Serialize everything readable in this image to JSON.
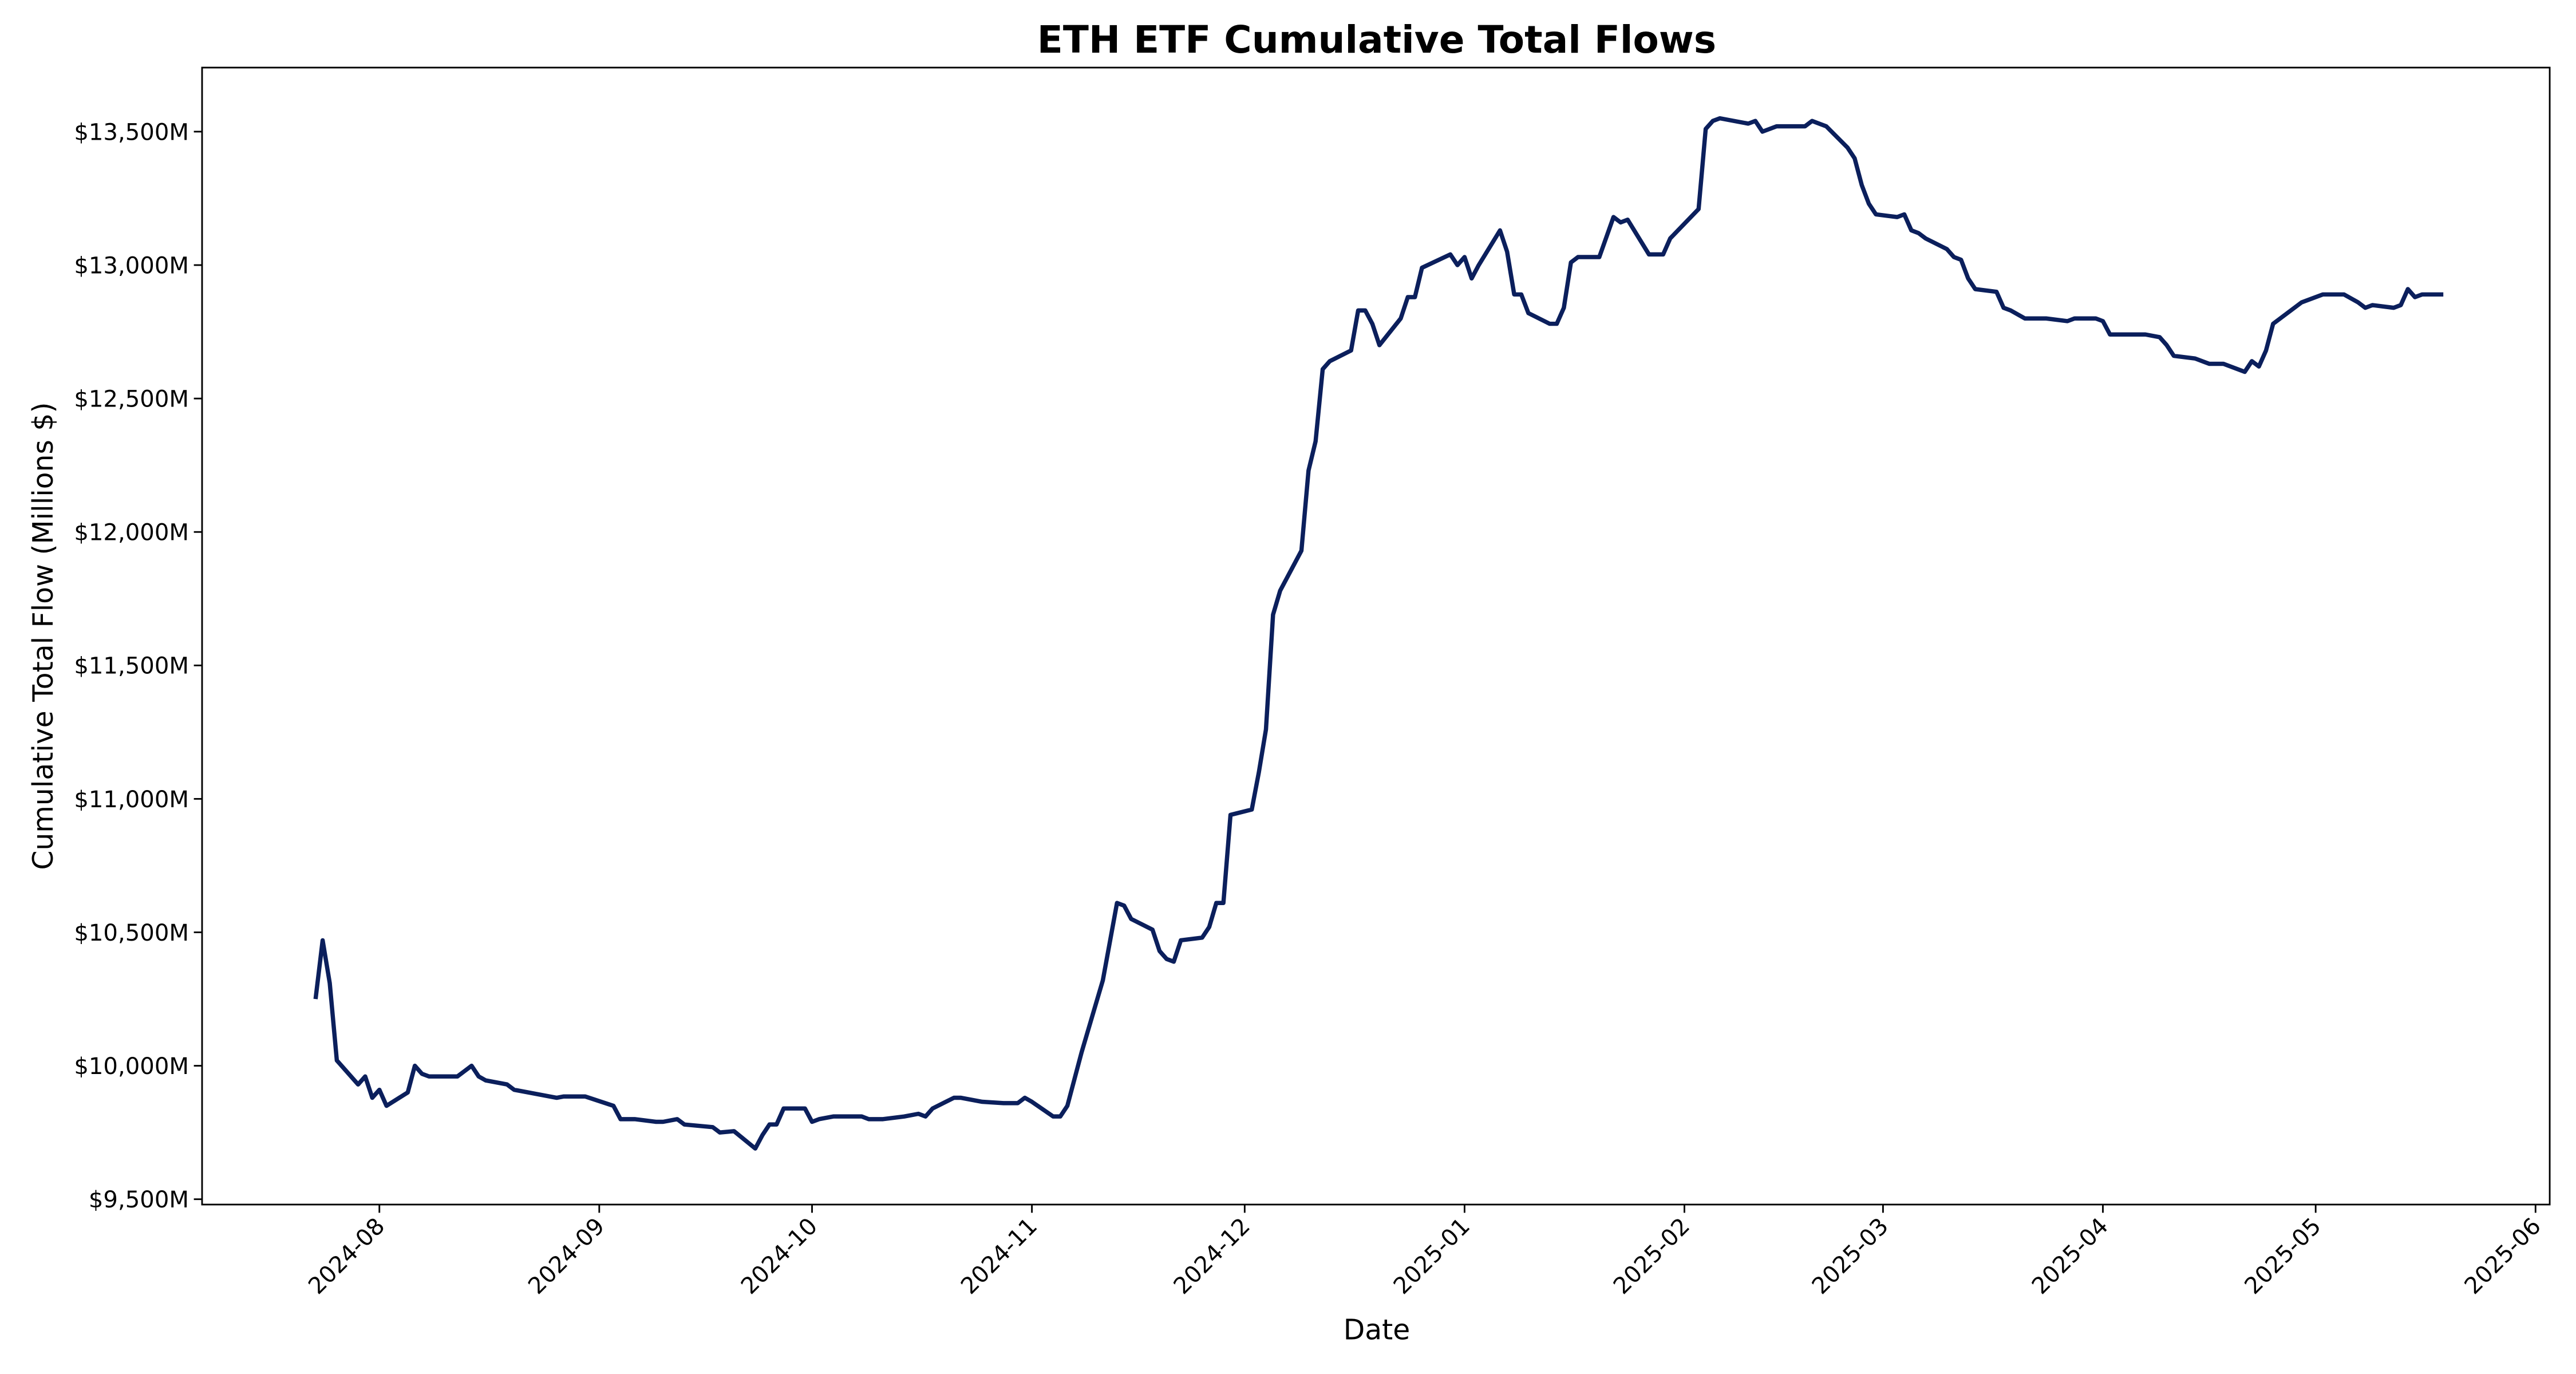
{
  "chart_data": {
    "type": "line",
    "title": "ETH ETF Cumulative Total Flows",
    "x_label": "Date",
    "y_label": "Cumulative Total Flow (Millions $)",
    "color": "#0b1f5c",
    "xlim": [
      "2024-07-07",
      "2025-06-03"
    ],
    "xticks": [
      "2024-08",
      "2024-09",
      "2024-10",
      "2024-11",
      "2024-12",
      "2025-01",
      "2025-02",
      "2025-03",
      "2025-04",
      "2025-05",
      "2025-06"
    ],
    "ylim": [
      9480,
      13740
    ],
    "yticks": [
      {
        "value": 9500,
        "label": "$9,500M"
      },
      {
        "value": 10000,
        "label": "$10,000M"
      },
      {
        "value": 10500,
        "label": "$10,500M"
      },
      {
        "value": 11000,
        "label": "$11,000M"
      },
      {
        "value": 11500,
        "label": "$11,500M"
      },
      {
        "value": 12000,
        "label": "$12,000M"
      },
      {
        "value": 12500,
        "label": "$12,500M"
      },
      {
        "value": 13000,
        "label": "$13,000M"
      },
      {
        "value": 13500,
        "label": "$13,500M"
      }
    ],
    "grid": false,
    "x": [
      "2024-07-23",
      "2024-07-24",
      "2024-07-25",
      "2024-07-26",
      "2024-07-29",
      "2024-07-30",
      "2024-07-31",
      "2024-08-01",
      "2024-08-02",
      "2024-08-05",
      "2024-08-06",
      "2024-08-07",
      "2024-08-08",
      "2024-08-12",
      "2024-08-13",
      "2024-08-14",
      "2024-08-15",
      "2024-08-16",
      "2024-08-19",
      "2024-08-20",
      "2024-08-22",
      "2024-08-26",
      "2024-08-27",
      "2024-08-30",
      "2024-09-03",
      "2024-09-04",
      "2024-09-06",
      "2024-09-09",
      "2024-09-10",
      "2024-09-12",
      "2024-09-13",
      "2024-09-17",
      "2024-09-18",
      "2024-09-20",
      "2024-09-23",
      "2024-09-24",
      "2024-09-25",
      "2024-09-26",
      "2024-09-27",
      "2024-09-30",
      "2024-10-01",
      "2024-10-02",
      "2024-10-04",
      "2024-10-08",
      "2024-10-09",
      "2024-10-11",
      "2024-10-14",
      "2024-10-16",
      "2024-10-17",
      "2024-10-18",
      "2024-10-21",
      "2024-10-22",
      "2024-10-25",
      "2024-10-28",
      "2024-10-30",
      "2024-10-31",
      "2024-11-01",
      "2024-11-04",
      "2024-11-05",
      "2024-11-06",
      "2024-11-07",
      "2024-11-08",
      "2024-11-11",
      "2024-11-13",
      "2024-11-14",
      "2024-11-15",
      "2024-11-18",
      "2024-11-19",
      "2024-11-20",
      "2024-11-21",
      "2024-11-22",
      "2024-11-25",
      "2024-11-26",
      "2024-11-27",
      "2024-11-28",
      "2024-11-29",
      "2024-12-02",
      "2024-12-03",
      "2024-12-04",
      "2024-12-05",
      "2024-12-06",
      "2024-12-09",
      "2024-12-10",
      "2024-12-11",
      "2024-12-12",
      "2024-12-13",
      "2024-12-16",
      "2024-12-17",
      "2024-12-18",
      "2024-12-19",
      "2024-12-20",
      "2024-12-23",
      "2024-12-24",
      "2024-12-25",
      "2024-12-26",
      "2024-12-30",
      "2024-12-31",
      "2025-01-01",
      "2025-01-02",
      "2025-01-03",
      "2025-01-06",
      "2025-01-07",
      "2025-01-08",
      "2025-01-09",
      "2025-01-10",
      "2025-01-13",
      "2025-01-14",
      "2025-01-15",
      "2025-01-16",
      "2025-01-17",
      "2025-01-20",
      "2025-01-22",
      "2025-01-23",
      "2025-01-24",
      "2025-01-27",
      "2025-01-29",
      "2025-01-30",
      "2025-02-03",
      "2025-02-04",
      "2025-02-05",
      "2025-02-06",
      "2025-02-10",
      "2025-02-11",
      "2025-02-12",
      "2025-02-14",
      "2025-02-18",
      "2025-02-19",
      "2025-02-21",
      "2025-02-24",
      "2025-02-25",
      "2025-02-26",
      "2025-02-27",
      "2025-02-28",
      "2025-03-03",
      "2025-03-04",
      "2025-03-05",
      "2025-03-06",
      "2025-03-07",
      "2025-03-10",
      "2025-03-11",
      "2025-03-12",
      "2025-03-13",
      "2025-03-14",
      "2025-03-17",
      "2025-03-18",
      "2025-03-19",
      "2025-03-21",
      "2025-03-24",
      "2025-03-27",
      "2025-03-28",
      "2025-03-31",
      "2025-04-01",
      "2025-04-02",
      "2025-04-04",
      "2025-04-07",
      "2025-04-09",
      "2025-04-10",
      "2025-04-11",
      "2025-04-14",
      "2025-04-16",
      "2025-04-18",
      "2025-04-21",
      "2025-04-22",
      "2025-04-23",
      "2025-04-24",
      "2025-04-25",
      "2025-04-29",
      "2025-04-30",
      "2025-05-02",
      "2025-05-05",
      "2025-05-07",
      "2025-05-08",
      "2025-05-09",
      "2025-05-12",
      "2025-05-13",
      "2025-05-14",
      "2025-05-15",
      "2025-05-16",
      "2025-05-19"
    ],
    "values": [
      10250,
      10470,
      10310,
      10020,
      9930,
      9960,
      9880,
      9910,
      9850,
      9900,
      10000,
      9970,
      9960,
      9960,
      9980,
      10000,
      9960,
      9945,
      9930,
      9910,
      9900,
      9880,
      9885,
      9885,
      9850,
      9800,
      9800,
      9790,
      9790,
      9800,
      9780,
      9770,
      9750,
      9755,
      9690,
      9740,
      9780,
      9780,
      9840,
      9840,
      9790,
      9800,
      9810,
      9810,
      9800,
      9800,
      9810,
      9820,
      9810,
      9840,
      9880,
      9880,
      9865,
      9860,
      9860,
      9880,
      9865,
      9810,
      9810,
      9850,
      9950,
      10050,
      10320,
      10610,
      10600,
      10550,
      10510,
      10430,
      10400,
      10390,
      10470,
      10480,
      10520,
      10610,
      10610,
      10940,
      10960,
      11100,
      11260,
      11690,
      11780,
      11930,
      12230,
      12340,
      12610,
      12640,
      12680,
      12830,
      12830,
      12780,
      12700,
      12800,
      12880,
      12880,
      12990,
      13040,
      13000,
      13030,
      12950,
      13000,
      13130,
      13050,
      12890,
      12890,
      12820,
      12780,
      12780,
      12840,
      13010,
      13030,
      13030,
      13180,
      13160,
      13170,
      13040,
      13040,
      13100,
      13210,
      13510,
      13540,
      13550,
      13530,
      13540,
      13500,
      13520,
      13520,
      13540,
      13520,
      13440,
      13400,
      13300,
      13230,
      13190,
      13180,
      13190,
      13130,
      13120,
      13100,
      13060,
      13030,
      13020,
      12950,
      12910,
      12900,
      12840,
      12830,
      12800,
      12800,
      12790,
      12800,
      12800,
      12790,
      12740,
      12740,
      12740,
      12730,
      12700,
      12660,
      12650,
      12630,
      12630,
      12600,
      12640,
      12620,
      12680,
      12780,
      12860,
      12870,
      12890,
      12890,
      12860,
      12840,
      12850,
      12840,
      12850,
      12910,
      12880,
      12890,
      12890
    ]
  }
}
